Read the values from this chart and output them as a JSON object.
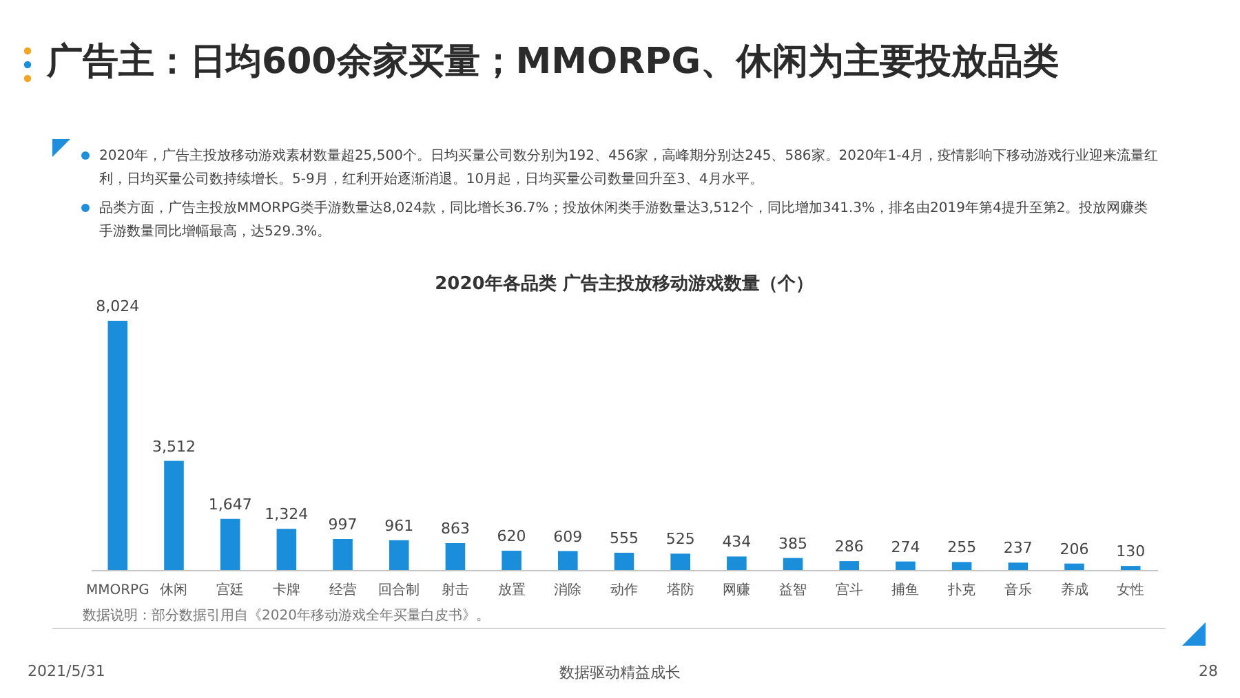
{
  "chart_data": {
    "type": "bar",
    "title": "广告主：日均600余家买量；MMORPG、休闲为主要投放品类",
    "subtitle": "2020年各品类 广告主投放移动游戏数量（个）",
    "categories": [
      "MMORPG",
      "休闲",
      "宫廷",
      "卡牌",
      "经营",
      "回合制",
      "射击",
      "放置",
      "消除",
      "动作",
      "塔防",
      "网赚",
      "益智",
      "宫斗",
      "捕鱼",
      "扑克",
      "音乐",
      "养成",
      "女性"
    ],
    "values": [
      8024,
      3512,
      1647,
      1324,
      997,
      961,
      863,
      620,
      609,
      555,
      525,
      434,
      385,
      286,
      274,
      255,
      237,
      206,
      130
    ],
    "value_labels": [
      "8,024",
      "3,512",
      "1,647",
      "1,324",
      "997",
      "961",
      "863",
      "620",
      "609",
      "555",
      "525",
      "434",
      "385",
      "286",
      "274",
      "255",
      "237",
      "206",
      "130"
    ],
    "color": "#1a8edb",
    "tick_labels": "x",
    "annotations": [
      "2020年，广告主投放移动游戏素材数量超25,500个。日均买量公司数分别为192、456家，高峰期分别达245、586家。2020年1-4月，疫情影响下移动游戏行业迎来流量红利，日均买量公司数持续增长。5-9月，红利开始逐渐消退。10月起，日均买量公司数量回升至3、4月水平。",
      "品类方面，广告主投放MMORPG类手游数量达8,024款，同比增长36.7%；投放休闲类手游数量达3,512个，同比增加341.3%，排名由2019年第4提升至第2。投放网赚类手游数量同比增幅最高，达529.3%。",
      "数据说明：部分数据引用自《2020年移动游戏全年买量白皮书》。",
      "2021/5/31",
      "数据驱动精益成长",
      "28"
    ]
  }
}
